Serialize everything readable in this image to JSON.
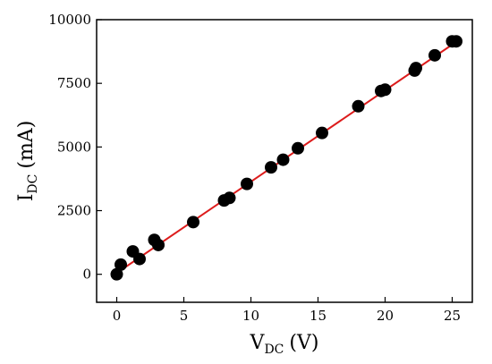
{
  "chart_data": {
    "type": "scatter",
    "title": "",
    "xlabel": {
      "main": "V",
      "sub": "DC",
      "unit": "(V)"
    },
    "ylabel": {
      "main": "I",
      "sub": "DC",
      "unit": "(mA)"
    },
    "xlim": [
      -1.5,
      26.5
    ],
    "ylim": [
      -1100,
      10000
    ],
    "xticks": [
      0,
      5,
      10,
      15,
      20,
      25
    ],
    "yticks": [
      0,
      2500,
      5000,
      7500,
      10000
    ],
    "grid": false,
    "point_color": "#000000",
    "fit_color": "#dd1c1c",
    "series": [
      {
        "values": [
          {
            "x": 0.0,
            "y": 0
          },
          {
            "x": 0.3,
            "y": 380
          },
          {
            "x": 1.2,
            "y": 900
          },
          {
            "x": 1.7,
            "y": 600
          },
          {
            "x": 2.8,
            "y": 1350
          },
          {
            "x": 3.1,
            "y": 1150
          },
          {
            "x": 5.7,
            "y": 2050
          },
          {
            "x": 8.0,
            "y": 2900
          },
          {
            "x": 8.4,
            "y": 3000
          },
          {
            "x": 9.7,
            "y": 3550
          },
          {
            "x": 11.5,
            "y": 4200
          },
          {
            "x": 12.4,
            "y": 4500
          },
          {
            "x": 13.5,
            "y": 4950
          },
          {
            "x": 15.3,
            "y": 5550
          },
          {
            "x": 18.0,
            "y": 6600
          },
          {
            "x": 19.7,
            "y": 7200
          },
          {
            "x": 20.0,
            "y": 7250
          },
          {
            "x": 22.2,
            "y": 8000
          },
          {
            "x": 22.3,
            "y": 8100
          },
          {
            "x": 23.7,
            "y": 8600
          },
          {
            "x": 25.0,
            "y": 9150
          },
          {
            "x": 25.3,
            "y": 9150
          }
        ]
      }
    ],
    "fit_line": {
      "from": {
        "x": 0,
        "y": 50
      },
      "to": {
        "x": 25.5,
        "y": 9200
      }
    }
  }
}
